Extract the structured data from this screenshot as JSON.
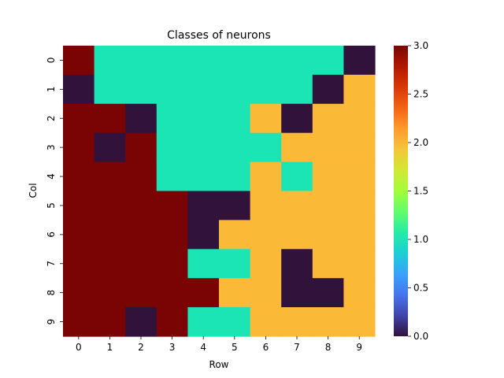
{
  "chart_data": {
    "type": "heatmap",
    "title": "Classes of neurons",
    "xlabel": "Row",
    "ylabel": "Col",
    "x_categories": [
      "0",
      "1",
      "2",
      "3",
      "4",
      "5",
      "6",
      "7",
      "8",
      "9"
    ],
    "y_categories": [
      "0",
      "1",
      "2",
      "3",
      "4",
      "5",
      "6",
      "7",
      "8",
      "9"
    ],
    "values": [
      [
        3,
        1,
        1,
        1,
        1,
        1,
        1,
        1,
        1,
        0
      ],
      [
        0,
        1,
        1,
        1,
        1,
        1,
        1,
        1,
        0,
        2
      ],
      [
        3,
        3,
        0,
        1,
        1,
        1,
        2,
        0,
        2,
        2
      ],
      [
        3,
        0,
        3,
        1,
        1,
        1,
        1,
        2,
        2,
        2
      ],
      [
        3,
        3,
        3,
        1,
        1,
        1,
        2,
        1,
        2,
        2
      ],
      [
        3,
        3,
        3,
        3,
        0,
        0,
        2,
        2,
        2,
        2
      ],
      [
        3,
        3,
        3,
        3,
        0,
        2,
        2,
        2,
        2,
        2
      ],
      [
        3,
        3,
        3,
        3,
        1,
        1,
        2,
        0,
        2,
        2
      ],
      [
        3,
        3,
        3,
        3,
        3,
        2,
        2,
        0,
        0,
        2
      ],
      [
        3,
        3,
        0,
        3,
        1,
        1,
        2,
        2,
        2,
        2
      ]
    ],
    "colorbar": {
      "min": 0.0,
      "max": 3.0,
      "ticks": [
        "0.0",
        "0.5",
        "1.0",
        "1.5",
        "2.0",
        "2.5",
        "3.0"
      ],
      "colormap": "turbo"
    },
    "class_colors": {
      "0": "#30123b",
      "1": "#1be5b5",
      "2": "#fbb938",
      "3": "#7a0403"
    },
    "grid": false
  }
}
